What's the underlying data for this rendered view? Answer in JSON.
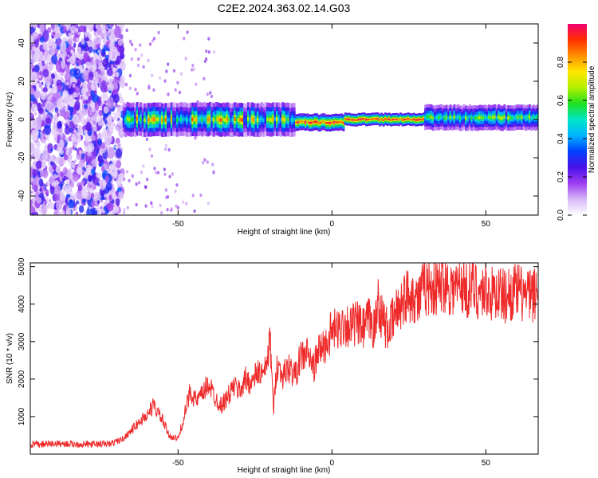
{
  "title": "C2E2.2024.363.02.14.G03",
  "chart_data": [
    {
      "type": "heatmap",
      "panel": "top",
      "xlabel": "Height of straight line (km)",
      "ylabel": "Frequency (Hz)",
      "xlim": [
        -98,
        67
      ],
      "ylim": [
        -50,
        50
      ],
      "xticks": [
        -50,
        0,
        50
      ],
      "yticks": [
        -40,
        -20,
        0,
        20,
        40
      ],
      "colorbar": {
        "label": "Normalized spectral amplitude",
        "range": [
          0,
          1
        ],
        "ticks": [
          0.0,
          0.2,
          0.4,
          0.6,
          0.8
        ],
        "tick_labels": [
          "0.0",
          "0.2",
          "0.4",
          "0.6",
          "0.8"
        ],
        "colormap": [
          "#ffffff",
          "#d8b8f8",
          "#9b3cf0",
          "#4a10e8",
          "#0040ff",
          "#00b4ff",
          "#00e6c8",
          "#20e020",
          "#b4f000",
          "#ffe600",
          "#ff9000",
          "#ff3000",
          "#f0006e"
        ]
      },
      "features": [
        {
          "name": "noise region",
          "x_range": [
            -98,
            -68
          ],
          "freq_range": [
            -50,
            50
          ],
          "amplitude": [
            0.05,
            0.35
          ]
        },
        {
          "name": "tracking band",
          "x_range": [
            -68,
            -12
          ],
          "center_freq": 0,
          "half_width_hz": 4,
          "amplitude": [
            0.3,
            0.9
          ]
        },
        {
          "name": "step segment",
          "x_range": [
            -12,
            4
          ],
          "center_freq": -1.5,
          "half_width_hz": 2,
          "amplitude": [
            0.8,
            1.0
          ]
        },
        {
          "name": "strong band",
          "x_range": [
            4,
            30
          ],
          "center_freq": 0,
          "half_width_hz": 1.5,
          "amplitude": [
            0.85,
            1.0
          ]
        },
        {
          "name": "fading band",
          "x_range": [
            30,
            67
          ],
          "center_freq": 1,
          "half_width_hz": 3,
          "amplitude": [
            0.4,
            0.7
          ]
        }
      ]
    },
    {
      "type": "line",
      "panel": "bottom",
      "xlabel": "Height of straight line (km)",
      "ylabel": "SNR (10 * v/v)",
      "xlim": [
        -98,
        67
      ],
      "ylim": [
        0,
        5100
      ],
      "xticks": [
        -50,
        0,
        50
      ],
      "yticks": [
        1000,
        2000,
        3000,
        4000,
        5000
      ],
      "color": "#ee2a2a",
      "series": [
        {
          "x": [
            -98,
            -90,
            -80,
            -72,
            -68,
            -65,
            -62,
            -60,
            -58,
            -55,
            -53,
            -50,
            -48,
            -46,
            -44,
            -42,
            -40,
            -38,
            -36,
            -34,
            -32,
            -30,
            -28,
            -26,
            -24,
            -22,
            -20,
            -19,
            -18,
            -16,
            -14,
            -12,
            -10,
            -8,
            -6,
            -4,
            -2,
            0,
            2,
            4,
            6,
            8,
            10,
            12,
            14,
            15,
            16,
            18,
            20,
            22,
            24,
            26,
            28,
            30,
            32,
            34,
            36,
            38,
            40,
            42,
            44,
            46,
            48,
            50,
            52,
            54,
            56,
            58,
            60,
            62,
            64,
            67
          ],
          "y": [
            250,
            280,
            260,
            270,
            400,
            650,
            900,
            1050,
            1300,
            900,
            500,
            400,
            1000,
            1700,
            1400,
            1600,
            1900,
            1500,
            1300,
            1500,
            1800,
            1700,
            2000,
            1900,
            2200,
            2100,
            3000,
            1100,
            2400,
            2100,
            2300,
            2100,
            2600,
            2700,
            2300,
            2800,
            2900,
            3300,
            3300,
            3500,
            3400,
            3500,
            3300,
            3600,
            3300,
            4200,
            3700,
            3300,
            3600,
            4000,
            4200,
            4300,
            4100,
            4450,
            4500,
            4400,
            4600,
            4500,
            4400,
            4550,
            4350,
            4450,
            4300,
            4400,
            4250,
            4350,
            4200,
            4300,
            4350,
            4250,
            4200,
            4300
          ]
        }
      ]
    }
  ]
}
